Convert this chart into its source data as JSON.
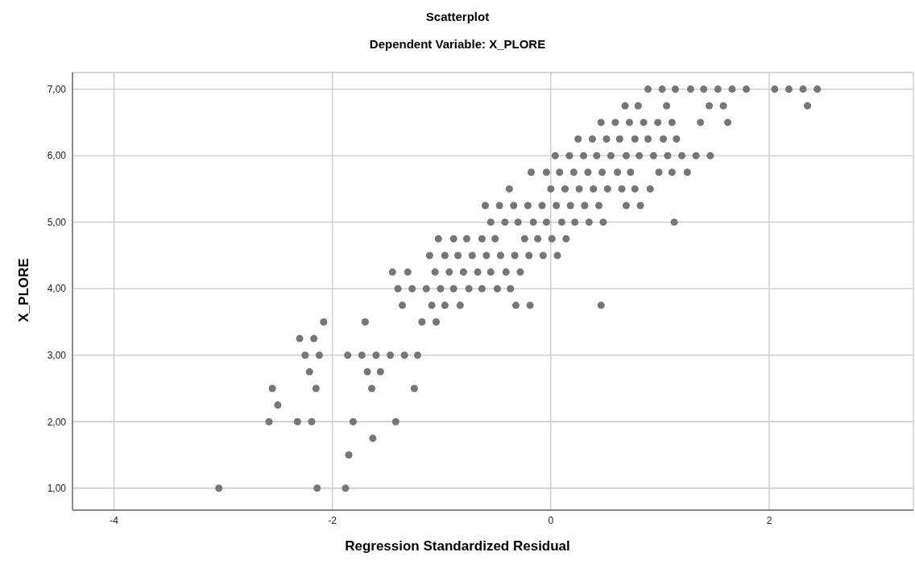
{
  "chart_data": {
    "type": "scatter",
    "title": "Scatterplot",
    "subtitle": "Dependent Variable: X_PLORE",
    "xlabel": "Regression Standardized Residual",
    "ylabel": "X_PLORE",
    "x": [
      0.89,
      1.02,
      1.14,
      1.28,
      1.4,
      1.53,
      1.66,
      1.79,
      2.05,
      2.18,
      2.31,
      2.44,
      0.68,
      0.8,
      1.06,
      1.45,
      1.58,
      2.35,
      0.46,
      0.59,
      0.72,
      0.85,
      0.98,
      1.11,
      1.37,
      1.62,
      0.25,
      0.38,
      0.51,
      0.63,
      0.77,
      0.89,
      1.03,
      1.15,
      0.04,
      0.17,
      0.3,
      0.42,
      0.55,
      0.69,
      0.81,
      0.94,
      1.07,
      1.2,
      1.33,
      1.46,
      -0.18,
      -0.04,
      0.08,
      0.21,
      0.34,
      0.47,
      0.61,
      0.73,
      0.99,
      1.11,
      1.25,
      -0.38,
      0.0,
      0.13,
      0.26,
      0.39,
      0.52,
      0.65,
      0.77,
      0.91,
      -0.6,
      -0.47,
      -0.34,
      -0.21,
      -0.08,
      0.05,
      0.18,
      0.31,
      0.44,
      0.69,
      0.82,
      -0.55,
      -0.42,
      -0.3,
      -0.16,
      -0.04,
      0.1,
      0.22,
      0.35,
      0.48,
      1.13,
      -1.03,
      -0.89,
      -0.77,
      -0.63,
      -0.51,
      -0.24,
      -0.12,
      0.01,
      0.14,
      -1.11,
      -0.97,
      -0.85,
      -0.72,
      -0.59,
      -0.46,
      -0.33,
      -0.2,
      -0.07,
      0.06,
      -1.45,
      -1.31,
      -1.06,
      -0.93,
      -0.8,
      -0.67,
      -0.55,
      -0.41,
      -0.28,
      -1.4,
      -1.27,
      -1.14,
      -1.01,
      -0.89,
      -0.75,
      -0.63,
      -0.49,
      -0.37,
      -1.36,
      -1.09,
      -0.97,
      -0.83,
      -0.32,
      -0.19,
      0.46,
      -2.08,
      -1.7,
      -1.18,
      -1.05,
      -2.3,
      -2.17,
      -2.25,
      -2.12,
      -1.86,
      -1.73,
      -1.6,
      -1.47,
      -1.34,
      -1.22,
      -2.21,
      -1.68,
      -1.56,
      -2.55,
      -2.15,
      -1.64,
      -1.25,
      -2.5,
      -2.58,
      -2.32,
      -2.19,
      -1.81,
      -1.42,
      -1.63,
      -1.85,
      -3.04,
      -2.14,
      -1.88
    ],
    "series": [
      {
        "color": "#767676",
        "values": [
          7,
          7,
          7,
          7,
          7,
          7,
          7,
          7,
          7,
          7,
          7,
          7,
          6.75,
          6.75,
          6.75,
          6.75,
          6.75,
          6.75,
          6.5,
          6.5,
          6.5,
          6.5,
          6.5,
          6.5,
          6.5,
          6.5,
          6.25,
          6.25,
          6.25,
          6.25,
          6.25,
          6.25,
          6.25,
          6.25,
          6,
          6,
          6,
          6,
          6,
          6,
          6,
          6,
          6,
          6,
          6,
          6,
          5.75,
          5.75,
          5.75,
          5.75,
          5.75,
          5.75,
          5.75,
          5.75,
          5.75,
          5.75,
          5.75,
          5.5,
          5.5,
          5.5,
          5.5,
          5.5,
          5.5,
          5.5,
          5.5,
          5.5,
          5.25,
          5.25,
          5.25,
          5.25,
          5.25,
          5.25,
          5.25,
          5.25,
          5.25,
          5.25,
          5.25,
          5,
          5,
          5,
          5,
          5,
          5,
          5,
          5,
          5,
          5,
          4.75,
          4.75,
          4.75,
          4.75,
          4.75,
          4.75,
          4.75,
          4.75,
          4.75,
          4.5,
          4.5,
          4.5,
          4.5,
          4.5,
          4.5,
          4.5,
          4.5,
          4.5,
          4.5,
          4.25,
          4.25,
          4.25,
          4.25,
          4.25,
          4.25,
          4.25,
          4.25,
          4.25,
          4,
          4,
          4,
          4,
          4,
          4,
          4,
          4,
          4,
          3.75,
          3.75,
          3.75,
          3.75,
          3.75,
          3.75,
          3.75,
          3.5,
          3.5,
          3.5,
          3.5,
          3.25,
          3.25,
          3,
          3,
          3,
          3,
          3,
          3,
          3,
          3,
          2.75,
          2.75,
          2.75,
          2.5,
          2.5,
          2.5,
          2.5,
          2.25,
          2,
          2,
          2,
          2,
          2,
          1.75,
          1.5,
          1,
          1,
          1
        ]
      }
    ],
    "xlim": [
      -4.38,
      3.32
    ],
    "xticks": [
      -4,
      -2,
      0,
      2
    ],
    "ylim": [
      0.67,
      7.25
    ],
    "yticks": [
      {
        "value": 1,
        "label": "1,00"
      },
      {
        "value": 2,
        "label": "2,00"
      },
      {
        "value": 3,
        "label": "3,00"
      },
      {
        "value": 4,
        "label": "4,00"
      },
      {
        "value": 5,
        "label": "5,00"
      },
      {
        "value": 6,
        "label": "6,00"
      },
      {
        "value": 7,
        "label": "7,00"
      }
    ],
    "grid": true,
    "marker": "circle"
  }
}
